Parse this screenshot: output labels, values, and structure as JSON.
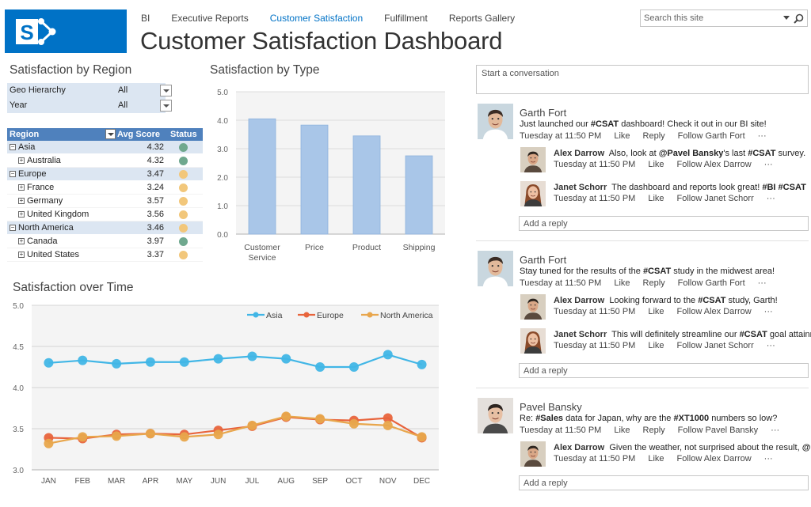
{
  "header": {
    "nav": [
      "BI",
      "Executive Reports",
      "Customer Satisfaction",
      "Fulfillment",
      "Reports Gallery"
    ],
    "active_nav": "Customer Satisfaction",
    "page_title": "Customer Satisfaction Dashboard",
    "search_placeholder": "Search this site",
    "brand_color": "#0072c6"
  },
  "region": {
    "title": "Satisfaction by Region",
    "filters": [
      {
        "label": "Geo Hierarchy",
        "value": "All"
      },
      {
        "label": "Year",
        "value": "All"
      }
    ],
    "columns": [
      "Region",
      "Avg Score",
      "Status"
    ],
    "rows": [
      {
        "name": "Asia",
        "score": "4.32",
        "status": "green",
        "level": 0,
        "toggle": "−"
      },
      {
        "name": "Australia",
        "score": "4.32",
        "status": "green",
        "level": 1,
        "toggle": "+"
      },
      {
        "name": "Europe",
        "score": "3.47",
        "status": "yellow",
        "level": 0,
        "toggle": "−"
      },
      {
        "name": "France",
        "score": "3.24",
        "status": "yellow",
        "level": 1,
        "toggle": "+"
      },
      {
        "name": "Germany",
        "score": "3.57",
        "status": "yellow",
        "level": 1,
        "toggle": "+"
      },
      {
        "name": "United Kingdom",
        "score": "3.56",
        "status": "yellow",
        "level": 1,
        "toggle": "+"
      },
      {
        "name": "North America",
        "score": "3.46",
        "status": "yellow",
        "level": 0,
        "toggle": "−"
      },
      {
        "name": "Canada",
        "score": "3.97",
        "status": "green",
        "level": 1,
        "toggle": "+"
      },
      {
        "name": "United States",
        "score": "3.37",
        "status": "yellow",
        "level": 1,
        "toggle": "+"
      }
    ],
    "status_colors": {
      "green": "#6fa88e",
      "yellow": "#f2c77b"
    }
  },
  "chart_data": [
    {
      "type": "bar",
      "title": "Satisfaction by Type",
      "categories": [
        [
          "Customer",
          "Service"
        ],
        [
          "Price"
        ],
        [
          "Product"
        ],
        [
          "Shipping"
        ]
      ],
      "values": [
        4.05,
        3.83,
        3.45,
        2.75
      ],
      "ylim": [
        0,
        5
      ],
      "yticks": [
        "0.0",
        "1.0",
        "2.0",
        "3.0",
        "4.0",
        "5.0"
      ],
      "grid": true,
      "color": "#a9c6e8"
    },
    {
      "type": "line",
      "title": "Satisfaction over Time",
      "categories": [
        "JAN",
        "FEB",
        "MAR",
        "APR",
        "MAY",
        "JUN",
        "JUL",
        "AUG",
        "SEP",
        "OCT",
        "NOV",
        "DEC"
      ],
      "ylim": [
        3.0,
        5.0
      ],
      "yticks": [
        "3.0",
        "3.5",
        "4.0",
        "4.5",
        "5.0"
      ],
      "legend": "top-right",
      "series": [
        {
          "name": "Asia",
          "color": "#41b6e6",
          "values": [
            4.3,
            4.33,
            4.29,
            4.31,
            4.31,
            4.35,
            4.38,
            4.35,
            4.25,
            4.25,
            4.4,
            4.28
          ]
        },
        {
          "name": "Europe",
          "color": "#e8643c",
          "values": [
            3.39,
            3.38,
            3.43,
            3.44,
            3.43,
            3.48,
            3.53,
            3.64,
            3.61,
            3.6,
            3.63,
            3.39
          ]
        },
        {
          "name": "North America",
          "color": "#e8a64c",
          "values": [
            3.32,
            3.4,
            3.41,
            3.44,
            3.4,
            3.43,
            3.54,
            3.65,
            3.62,
            3.56,
            3.54,
            3.4
          ]
        }
      ]
    }
  ],
  "conversation": {
    "start_placeholder": "Start a conversation",
    "reply_placeholder": "Add a reply",
    "threads": [
      {
        "author": "Garth Fort",
        "message": [
          {
            "t": "Just launched our "
          },
          {
            "b": "#CSAT"
          },
          {
            "t": " dashboard! Check it out in our BI site!"
          }
        ],
        "time": "Tuesday at 11:50 PM",
        "like": "Like",
        "reply": "Reply",
        "follow": "Follow Garth Fort",
        "more": "···",
        "replies": [
          {
            "author": "Alex Darrow",
            "message": [
              {
                "t": "Also, look at "
              },
              {
                "b": "@Pavel Bansky"
              },
              {
                "t": "'s last "
              },
              {
                "b": "#CSAT"
              },
              {
                "t": " survey."
              }
            ],
            "time": "Tuesday at 11:50 PM",
            "like": "Like",
            "follow": "Follow Alex Darrow",
            "more": "···"
          },
          {
            "author": "Janet Schorr",
            "message": [
              {
                "t": "The dashboard and reports look great! "
              },
              {
                "b": "#BI"
              },
              {
                "t": " "
              },
              {
                "b": "#CSAT"
              }
            ],
            "time": "Tuesday at 11:50 PM",
            "like": "Like",
            "follow": "Follow Janet Schorr",
            "more": "···"
          }
        ]
      },
      {
        "author": "Garth Fort",
        "message": [
          {
            "t": "Stay tuned for the results of the "
          },
          {
            "b": "#CSAT"
          },
          {
            "t": " study in the midwest area!"
          }
        ],
        "time": "Tuesday at 11:50 PM",
        "like": "Like",
        "reply": "Reply",
        "follow": "Follow Garth Fort",
        "more": "···",
        "replies": [
          {
            "author": "Alex Darrow",
            "message": [
              {
                "t": "Looking forward to the "
              },
              {
                "b": "#CSAT"
              },
              {
                "t": " study, Garth!"
              }
            ],
            "time": "Tuesday at 11:50 PM",
            "like": "Like",
            "follow": "Follow Alex Darrow",
            "more": "···"
          },
          {
            "author": "Janet Schorr",
            "message": [
              {
                "t": "This will definitely streamline our "
              },
              {
                "b": "#CSAT"
              },
              {
                "t": " goal attainment!"
              }
            ],
            "time": "Tuesday at 11:50 PM",
            "like": "Like",
            "follow": "Follow Janet Schorr",
            "more": "···"
          }
        ]
      },
      {
        "author": "Pavel Bansky",
        "message": [
          {
            "t": "Re: "
          },
          {
            "b": "#Sales"
          },
          {
            "t": " data for Japan, why are the "
          },
          {
            "b": "#XT1000"
          },
          {
            "t": " numbers so low?"
          }
        ],
        "time": "Tuesday at 11:50 PM",
        "like": "Like",
        "reply": "Reply",
        "follow": "Follow Pavel Bansky",
        "more": "···",
        "replies": [
          {
            "author": "Alex Darrow",
            "message": [
              {
                "t": "Given the weather, not surprised about the result, "
              },
              {
                "b": "@Pavel"
              }
            ],
            "time": "Tuesday at 11:50 PM",
            "like": "Like",
            "follow": "Follow Alex Darrow",
            "more": "···"
          }
        ]
      }
    ]
  }
}
